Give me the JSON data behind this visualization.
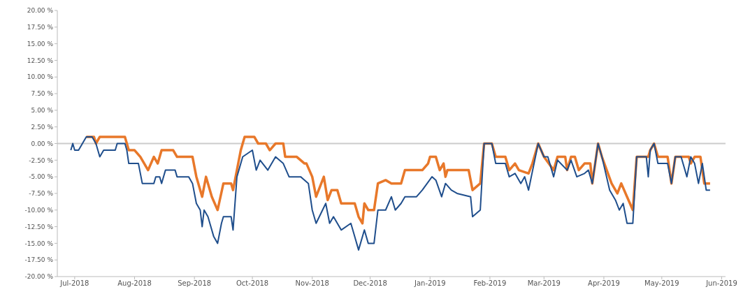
{
  "chart_data": {
    "type": "line",
    "xlim": [
      "2018-06-22",
      "2019-06-03"
    ],
    "xticks": [
      {
        "value": "2018-07-01",
        "label": "Jul-2018"
      },
      {
        "value": "2018-08-01",
        "label": "Aug-2018"
      },
      {
        "value": "2018-09-01",
        "label": "Sep-2018"
      },
      {
        "value": "2018-10-01",
        "label": "Oct-2018"
      },
      {
        "value": "2018-11-01",
        "label": "Nov-2018"
      },
      {
        "value": "2018-12-01",
        "label": "Dec-2018"
      },
      {
        "value": "2019-01-01",
        "label": "Jan-2019"
      },
      {
        "value": "2019-02-01",
        "label": "Feb-2019"
      },
      {
        "value": "2019-03-01",
        "label": "Mar-2019"
      },
      {
        "value": "2019-04-01",
        "label": "Apr-2019"
      },
      {
        "value": "2019-05-01",
        "label": "May-2019"
      },
      {
        "value": "2019-06-01",
        "label": "Jun-2019"
      }
    ],
    "ylim": [
      -20,
      20
    ],
    "yticks": [
      {
        "value": 20,
        "label": "20.00 %"
      },
      {
        "value": 17.5,
        "label": "17.50 %"
      },
      {
        "value": 15,
        "label": "15.00 %"
      },
      {
        "value": 12.5,
        "label": "12.50 %"
      },
      {
        "value": 10,
        "label": "10.00 %"
      },
      {
        "value": 7.5,
        "label": "7.50 %"
      },
      {
        "value": 5,
        "label": "5.00 %"
      },
      {
        "value": 2.5,
        "label": "2.50 %"
      },
      {
        "value": 0,
        "label": "0.00 %"
      },
      {
        "value": -2.5,
        "label": "-2.50 %"
      },
      {
        "value": -5,
        "label": "-5.00 %"
      },
      {
        "value": -7.5,
        "label": "-7.50 %"
      },
      {
        "value": -10,
        "label": "-10.00 %"
      },
      {
        "value": -12.5,
        "label": "-12.50 %"
      },
      {
        "value": -15,
        "label": "-15.00 %"
      },
      {
        "value": -17.5,
        "label": "-17.50 %"
      },
      {
        "value": -20,
        "label": "-20.00 %"
      }
    ],
    "marker": "none",
    "line_style": "solid",
    "ref_lines": [
      {
        "axis": "y",
        "value": 0,
        "color": "#cccccc"
      }
    ],
    "series": [
      {
        "color": "#e8782a",
        "x": [
          "2018-07-07",
          "2018-07-11",
          "2018-07-12",
          "2018-07-14",
          "2018-07-27",
          "2018-07-28",
          "2018-07-29",
          "2018-08-01",
          "2018-08-04",
          "2018-08-08",
          "2018-08-11",
          "2018-08-13",
          "2018-08-15",
          "2018-08-21",
          "2018-08-23",
          "2018-08-31",
          "2018-09-02",
          "2018-09-05",
          "2018-09-07",
          "2018-09-10",
          "2018-09-13",
          "2018-09-16",
          "2018-09-20",
          "2018-09-21",
          "2018-09-25",
          "2018-09-27",
          "2018-10-02",
          "2018-10-04",
          "2018-10-08",
          "2018-10-10",
          "2018-10-13",
          "2018-10-17",
          "2018-10-18",
          "2018-10-24",
          "2018-10-28",
          "2018-10-29",
          "2018-11-01",
          "2018-11-03",
          "2018-11-07",
          "2018-11-09",
          "2018-11-11",
          "2018-11-14",
          "2018-11-16",
          "2018-11-23",
          "2018-11-25",
          "2018-11-27",
          "2018-11-28",
          "2018-11-30",
          "2018-12-03",
          "2018-12-05",
          "2018-12-09",
          "2018-12-12",
          "2018-12-17",
          "2018-12-19",
          "2018-12-28",
          "2018-12-31",
          "2019-01-01",
          "2019-01-04",
          "2019-01-06",
          "2019-01-08",
          "2019-01-09",
          "2019-01-10",
          "2019-01-21",
          "2019-01-23",
          "2019-01-27",
          "2019-01-29",
          "2019-02-02",
          "2019-02-04",
          "2019-02-09",
          "2019-02-11",
          "2019-02-14",
          "2019-02-16",
          "2019-02-21",
          "2019-02-23",
          "2019-02-26",
          "2019-03-01",
          "2019-03-06",
          "2019-03-08",
          "2019-03-12",
          "2019-03-13",
          "2019-03-15",
          "2019-03-17",
          "2019-03-19",
          "2019-03-22",
          "2019-03-25",
          "2019-03-26",
          "2019-03-29",
          "2019-03-31",
          "2019-04-05",
          "2019-04-08",
          "2019-04-10",
          "2019-04-13",
          "2019-04-16",
          "2019-04-18",
          "2019-04-24",
          "2019-04-25",
          "2019-04-27",
          "2019-04-29",
          "2019-05-04",
          "2019-05-06",
          "2019-05-08",
          "2019-05-15",
          "2019-05-16",
          "2019-05-18",
          "2019-05-21",
          "2019-05-23",
          "2019-05-26"
        ],
        "values": [
          1,
          1,
          0,
          1,
          1,
          0,
          -1,
          -1,
          -2,
          -4,
          -2,
          -3,
          -1,
          -1,
          -2,
          -2,
          -5,
          -8,
          -5,
          -8,
          -10,
          -6,
          -6,
          -7,
          -1,
          1,
          1,
          0,
          0,
          -1,
          0,
          0,
          -2,
          -2,
          -3,
          -3,
          -5,
          -8,
          -5,
          -8.5,
          -7,
          -7,
          -9,
          -9,
          -11,
          -12,
          -9,
          -10,
          -10,
          -6,
          -5.5,
          -6,
          -6,
          -4,
          -4,
          -3,
          -2,
          -2,
          -4,
          -3,
          -5,
          -4,
          -4,
          -7,
          -6,
          0,
          0,
          -2,
          -2,
          -4,
          -3,
          -4,
          -4.5,
          -3,
          0,
          -2,
          -4,
          -2,
          -2,
          -4,
          -2,
          -2,
          -4,
          -3,
          -3,
          -6,
          0,
          -2,
          -6,
          -7.5,
          -6,
          -8,
          -10,
          -2,
          -2,
          -1,
          0,
          -2,
          -2,
          -6,
          -2,
          -2,
          -3,
          -2,
          -2,
          -6,
          -6
        ]
      },
      {
        "color": "#1f4e8c",
        "x": [
          "2018-06-29",
          "2018-06-30",
          "2018-07-01",
          "2018-07-03",
          "2018-07-05",
          "2018-07-07",
          "2018-07-10",
          "2018-07-12",
          "2018-07-14",
          "2018-07-16",
          "2018-07-22",
          "2018-07-23",
          "2018-07-27",
          "2018-07-28",
          "2018-07-29",
          "2018-08-03",
          "2018-08-05",
          "2018-08-11",
          "2018-08-12",
          "2018-08-14",
          "2018-08-15",
          "2018-08-17",
          "2018-08-22",
          "2018-08-23",
          "2018-08-29",
          "2018-08-31",
          "2018-09-02",
          "2018-09-04",
          "2018-09-05",
          "2018-09-06",
          "2018-09-08",
          "2018-09-11",
          "2018-09-13",
          "2018-09-15",
          "2018-09-16",
          "2018-09-20",
          "2018-09-21",
          "2018-09-23",
          "2018-09-24",
          "2018-09-26",
          "2018-10-01",
          "2018-10-03",
          "2018-10-05",
          "2018-10-09",
          "2018-10-13",
          "2018-10-17",
          "2018-10-20",
          "2018-10-26",
          "2018-10-30",
          "2018-11-01",
          "2018-11-03",
          "2018-11-08",
          "2018-11-10",
          "2018-11-12",
          "2018-11-16",
          "2018-11-21",
          "2018-11-25",
          "2018-11-28",
          "2018-11-30",
          "2018-12-03",
          "2018-12-05",
          "2018-12-09",
          "2018-12-12",
          "2018-12-14",
          "2018-12-17",
          "2018-12-19",
          "2018-12-25",
          "2018-12-28",
          "2019-01-02",
          "2019-01-04",
          "2019-01-07",
          "2019-01-09",
          "2019-01-12",
          "2019-01-15",
          "2019-01-22",
          "2019-01-23",
          "2019-01-27",
          "2019-01-29",
          "2019-02-02",
          "2019-02-04",
          "2019-02-09",
          "2019-02-11",
          "2019-02-14",
          "2019-02-17",
          "2019-02-19",
          "2019-02-21",
          "2019-02-26",
          "2019-03-01",
          "2019-03-03",
          "2019-03-06",
          "2019-03-08",
          "2019-03-13",
          "2019-03-15",
          "2019-03-18",
          "2019-03-22",
          "2019-03-24",
          "2019-03-26",
          "2019-03-29",
          "2019-03-31",
          "2019-04-04",
          "2019-04-07",
          "2019-04-09",
          "2019-04-11",
          "2019-04-13",
          "2019-04-16",
          "2019-04-18",
          "2019-04-23",
          "2019-04-24",
          "2019-04-25",
          "2019-04-27",
          "2019-04-29",
          "2019-05-04",
          "2019-05-06",
          "2019-05-08",
          "2019-05-11",
          "2019-05-14",
          "2019-05-16",
          "2019-05-18",
          "2019-05-20",
          "2019-05-22",
          "2019-05-24",
          "2019-05-26"
        ],
        "values": [
          -1,
          0,
          -1,
          -1,
          0,
          1,
          1,
          0,
          -2,
          -1,
          -1,
          0,
          0,
          -1,
          -3,
          -3,
          -6,
          -6,
          -5,
          -5,
          -6,
          -4,
          -4,
          -5,
          -5,
          -6,
          -9,
          -10,
          -12.5,
          -10,
          -11,
          -14,
          -15,
          -12,
          -11,
          -11,
          -13,
          -5,
          -4,
          -2,
          -1,
          -4,
          -2.5,
          -4,
          -2,
          -3,
          -5,
          -5,
          -6,
          -10,
          -12,
          -9,
          -12,
          -11,
          -13,
          -12,
          -16,
          -13,
          -15,
          -15,
          -10,
          -10,
          -8,
          -10,
          -9,
          -8,
          -8,
          -7,
          -5,
          -5.5,
          -8,
          -6,
          -7,
          -7.5,
          -8,
          -11,
          -10,
          0,
          0,
          -3,
          -3,
          -5,
          -4.5,
          -6,
          -5,
          -7,
          0,
          -2,
          -2,
          -5,
          -2.5,
          -4,
          -2.5,
          -5,
          -4.5,
          -4,
          -6,
          0,
          -2,
          -7,
          -8.5,
          -10,
          -9,
          -12,
          -12,
          -2,
          -2,
          -5,
          -1,
          0,
          -3,
          -3,
          -6,
          -2,
          -2,
          -5,
          -2,
          -3,
          -6,
          -3,
          -7,
          -7
        ]
      }
    ]
  }
}
